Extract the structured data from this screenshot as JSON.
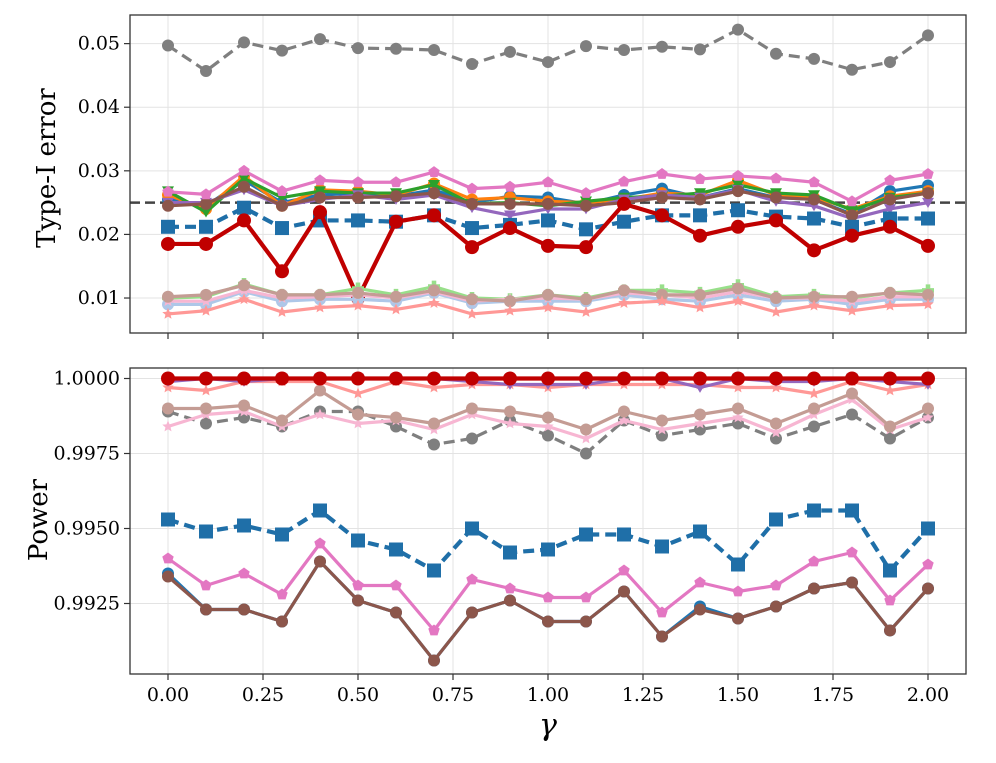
{
  "chart_data": [
    {
      "type": "line",
      "title": "",
      "xlabel": "",
      "ylabel": "Type-I error",
      "xlim": [
        -0.1,
        2.1
      ],
      "ylim": [
        0.0045,
        0.0545
      ],
      "grid": true,
      "x": [
        0.0,
        0.1,
        0.2,
        0.3,
        0.4,
        0.5,
        0.6,
        0.7,
        0.8,
        0.9,
        1.0,
        1.1,
        1.2,
        1.3,
        1.4,
        1.5,
        1.6,
        1.7,
        1.8,
        1.9,
        2.0
      ],
      "x_ticks": [
        "0.00",
        "0.25",
        "0.50",
        "0.75",
        "1.00",
        "1.25",
        "1.50",
        "1.75",
        "2.00"
      ],
      "y_ticks": [
        "0.01",
        "0.02",
        "0.03",
        "0.04",
        "0.05"
      ],
      "reference_line": {
        "y": 0.025,
        "color": "#444444",
        "style": "dashed"
      },
      "series": [
        {
          "color": "#7f7f7f",
          "marker": "circle",
          "dash": true,
          "values": [
            0.0497,
            0.0457,
            0.0502,
            0.0489,
            0.0507,
            0.0493,
            0.0492,
            0.049,
            0.0468,
            0.0487,
            0.0471,
            0.0496,
            0.049,
            0.0495,
            0.0491,
            0.0522,
            0.0484,
            0.0476,
            0.0459,
            0.0471,
            0.0513
          ]
        },
        {
          "color": "#1f77b4",
          "marker": "circle",
          "dash": false,
          "values": [
            0.0255,
            0.0245,
            0.0285,
            0.025,
            0.0262,
            0.0265,
            0.026,
            0.027,
            0.025,
            0.026,
            0.0258,
            0.0248,
            0.0262,
            0.0272,
            0.0258,
            0.0272,
            0.0258,
            0.0255,
            0.0232,
            0.0268,
            0.0277
          ]
        },
        {
          "color": "#ff7f0e",
          "marker": "circle",
          "dash": false,
          "values": [
            0.0262,
            0.024,
            0.0292,
            0.0245,
            0.027,
            0.0268,
            0.0262,
            0.028,
            0.0255,
            0.0258,
            0.0252,
            0.025,
            0.0255,
            0.0265,
            0.0262,
            0.0285,
            0.0262,
            0.0258,
            0.024,
            0.026,
            0.0268
          ]
        },
        {
          "color": "#2ca02c",
          "marker": "triangle-down",
          "dash": false,
          "values": [
            0.0268,
            0.0235,
            0.0288,
            0.0258,
            0.0268,
            0.0265,
            0.0265,
            0.0278,
            0.0248,
            0.025,
            0.0245,
            0.0252,
            0.0258,
            0.026,
            0.0265,
            0.0278,
            0.0265,
            0.0262,
            0.0238,
            0.0258,
            0.0265
          ]
        },
        {
          "color": "#9467bd",
          "marker": "triangle-down",
          "dash": false,
          "values": [
            0.025,
            0.025,
            0.027,
            0.0245,
            0.0255,
            0.0262,
            0.0255,
            0.0262,
            0.0242,
            0.023,
            0.024,
            0.024,
            0.0255,
            0.0262,
            0.0258,
            0.027,
            0.0252,
            0.0245,
            0.0225,
            0.024,
            0.025
          ]
        },
        {
          "color": "#8c564b",
          "marker": "circle",
          "dash": false,
          "values": [
            0.0245,
            0.0248,
            0.0275,
            0.0245,
            0.0258,
            0.0258,
            0.026,
            0.0265,
            0.0248,
            0.0248,
            0.0248,
            0.0245,
            0.025,
            0.0258,
            0.0255,
            0.0268,
            0.0258,
            0.0255,
            0.023,
            0.0255,
            0.0265
          ]
        },
        {
          "color": "#e377c2",
          "marker": "pentagon",
          "dash": false,
          "values": [
            0.0267,
            0.0263,
            0.03,
            0.0268,
            0.0285,
            0.0282,
            0.0282,
            0.0298,
            0.0272,
            0.0275,
            0.0282,
            0.0265,
            0.0283,
            0.0295,
            0.0287,
            0.0292,
            0.0288,
            0.0282,
            0.0252,
            0.0285,
            0.0295
          ]
        },
        {
          "color": "#1f6fa8",
          "marker": "square",
          "dash": true,
          "values": [
            0.0212,
            0.0212,
            0.0242,
            0.021,
            0.0222,
            0.0222,
            0.022,
            0.023,
            0.021,
            0.0215,
            0.0222,
            0.0208,
            0.022,
            0.023,
            0.023,
            0.0238,
            0.0228,
            0.0225,
            0.0212,
            0.0225,
            0.0225
          ]
        },
        {
          "color": "#c00000",
          "marker": "circle",
          "dash": false,
          "values": [
            0.0185,
            0.0185,
            0.0222,
            0.0142,
            0.0235,
            0.01,
            0.022,
            0.023,
            0.018,
            0.021,
            0.0182,
            0.018,
            0.0248,
            0.023,
            0.0198,
            0.0212,
            0.0222,
            0.0175,
            0.0198,
            0.0212,
            0.0182
          ]
        },
        {
          "color": "#98df8a",
          "marker": "plus",
          "dash": false,
          "values": [
            0.01,
            0.0102,
            0.0122,
            0.0105,
            0.0105,
            0.0115,
            0.0105,
            0.0118,
            0.01,
            0.0098,
            0.0105,
            0.01,
            0.0112,
            0.0112,
            0.0108,
            0.012,
            0.0102,
            0.0105,
            0.01,
            0.0108,
            0.0112
          ]
        },
        {
          "color": "#aec7e8",
          "marker": "circle",
          "dash": false,
          "values": [
            0.009,
            0.009,
            0.011,
            0.0095,
            0.0098,
            0.0098,
            0.0095,
            0.0108,
            0.0092,
            0.0095,
            0.0095,
            0.0095,
            0.0105,
            0.0098,
            0.0095,
            0.0105,
            0.0095,
            0.0098,
            0.009,
            0.0098,
            0.0098
          ]
        },
        {
          "color": "#f7b6d2",
          "marker": "star",
          "dash": false,
          "values": [
            0.0095,
            0.0095,
            0.0112,
            0.01,
            0.0102,
            0.0105,
            0.01,
            0.011,
            0.0095,
            0.0098,
            0.01,
            0.0098,
            0.0108,
            0.0105,
            0.01,
            0.011,
            0.01,
            0.01,
            0.0095,
            0.0102,
            0.0102
          ]
        },
        {
          "color": "#c49c94",
          "marker": "circle",
          "dash": false,
          "values": [
            0.0102,
            0.0105,
            0.012,
            0.0105,
            0.0105,
            0.0108,
            0.0102,
            0.0112,
            0.0098,
            0.0095,
            0.0105,
            0.0098,
            0.0112,
            0.0105,
            0.0105,
            0.0115,
            0.01,
            0.0102,
            0.0102,
            0.0108,
            0.0105
          ]
        },
        {
          "color": "#ff9896",
          "marker": "star",
          "dash": false,
          "values": [
            0.0075,
            0.008,
            0.0098,
            0.0078,
            0.0085,
            0.0088,
            0.0082,
            0.0092,
            0.0075,
            0.008,
            0.0085,
            0.0078,
            0.0092,
            0.0095,
            0.0085,
            0.0095,
            0.0078,
            0.0088,
            0.008,
            0.0088,
            0.009
          ]
        }
      ]
    },
    {
      "type": "line",
      "title": "",
      "xlabel": "γ",
      "ylabel": "Power",
      "xlim": [
        -0.1,
        2.1
      ],
      "ylim": [
        0.99015,
        1.00035
      ],
      "grid": true,
      "x": [
        0.0,
        0.1,
        0.2,
        0.3,
        0.4,
        0.5,
        0.6,
        0.7,
        0.8,
        0.9,
        1.0,
        1.1,
        1.2,
        1.3,
        1.4,
        1.5,
        1.6,
        1.7,
        1.8,
        1.9,
        2.0
      ],
      "x_ticks": [
        "0.00",
        "0.25",
        "0.50",
        "0.75",
        "1.00",
        "1.25",
        "1.50",
        "1.75",
        "2.00"
      ],
      "y_ticks": [
        "0.9925",
        "0.9950",
        "0.9975",
        "1.0000"
      ],
      "series": [
        {
          "color": "#1f77b4",
          "marker": "circle",
          "dash": false,
          "values": [
            0.9935,
            0.9923,
            0.9923,
            0.9919,
            0.9939,
            0.9926,
            0.9922,
            0.9906,
            0.9922,
            0.9926,
            0.9919,
            0.9919,
            0.9929,
            0.9914,
            0.9924,
            0.992,
            0.9924,
            0.993,
            0.9932,
            0.9916,
            0.993
          ]
        },
        {
          "color": "#8c564b",
          "marker": "circle",
          "dash": false,
          "values": [
            0.9934,
            0.9923,
            0.9923,
            0.9919,
            0.9939,
            0.9926,
            0.9922,
            0.9906,
            0.9922,
            0.9926,
            0.9919,
            0.9919,
            0.9929,
            0.9914,
            0.9923,
            0.992,
            0.9924,
            0.993,
            0.9932,
            0.9916,
            0.993
          ]
        },
        {
          "color": "#e377c2",
          "marker": "pentagon",
          "dash": false,
          "values": [
            0.994,
            0.9931,
            0.9935,
            0.9928,
            0.9945,
            0.9931,
            0.9931,
            0.9916,
            0.9933,
            0.993,
            0.9927,
            0.9927,
            0.9936,
            0.9922,
            0.9932,
            0.9929,
            0.9931,
            0.9939,
            0.9942,
            0.9926,
            0.9938
          ]
        },
        {
          "color": "#1f6fa8",
          "marker": "square",
          "dash": true,
          "values": [
            0.9953,
            0.9949,
            0.9951,
            0.9948,
            0.9956,
            0.9946,
            0.9943,
            0.9936,
            0.995,
            0.9942,
            0.9943,
            0.9948,
            0.9948,
            0.9944,
            0.9949,
            0.9938,
            0.9953,
            0.9956,
            0.9956,
            0.9936,
            0.995
          ]
        },
        {
          "color": "#7f7f7f",
          "marker": "circle",
          "dash": true,
          "values": [
            0.9989,
            0.9985,
            0.9987,
            0.9984,
            0.9989,
            0.9989,
            0.9984,
            0.9978,
            0.998,
            0.9986,
            0.9981,
            0.9975,
            0.9986,
            0.9981,
            0.9983,
            0.9985,
            0.998,
            0.9984,
            0.9988,
            0.998,
            0.9987
          ]
        },
        {
          "color": "#f7b6d2",
          "marker": "star",
          "dash": false,
          "values": [
            0.9984,
            0.9988,
            0.9989,
            0.9984,
            0.9988,
            0.9985,
            0.9986,
            0.9983,
            0.9988,
            0.9985,
            0.9984,
            0.998,
            0.9986,
            0.9983,
            0.9985,
            0.9987,
            0.9982,
            0.9988,
            0.9993,
            0.9983,
            0.9987
          ]
        },
        {
          "color": "#c49c94",
          "marker": "circle",
          "dash": false,
          "values": [
            0.999,
            0.999,
            0.9991,
            0.9986,
            0.9996,
            0.9988,
            0.9987,
            0.9985,
            0.999,
            0.9989,
            0.9987,
            0.9983,
            0.9989,
            0.9986,
            0.9988,
            0.999,
            0.9985,
            0.999,
            0.9995,
            0.9984,
            0.999
          ]
        },
        {
          "color": "#ff9896",
          "marker": "star",
          "dash": false,
          "values": [
            0.9997,
            0.9996,
            0.9999,
            0.9999,
            0.9999,
            0.9995,
            0.9999,
            0.9997,
            0.9998,
            0.9998,
            0.9997,
            0.9998,
            0.9998,
            0.9998,
            0.9998,
            0.9997,
            0.9997,
            0.9995,
            0.9999,
            0.9996,
            0.9998
          ]
        },
        {
          "color": "#9467bd",
          "marker": "triangle-down",
          "dash": false,
          "values": [
            0.9999,
            1.0,
            0.9999,
            1.0,
            1.0,
            1.0,
            1.0,
            1.0,
            0.9999,
            0.9998,
            0.9998,
            0.9998,
            1.0,
            1.0,
            0.9997,
            1.0,
            0.9999,
            0.9999,
            1.0,
            0.9999,
            0.9998
          ]
        },
        {
          "color": "#c00000",
          "marker": "circle",
          "dash": false,
          "values": [
            1.0,
            1.0,
            1.0,
            1.0,
            1.0,
            1.0,
            1.0,
            1.0,
            1.0,
            1.0,
            1.0,
            1.0,
            1.0,
            1.0,
            1.0,
            1.0,
            1.0,
            1.0,
            1.0,
            1.0,
            1.0
          ]
        }
      ]
    }
  ]
}
